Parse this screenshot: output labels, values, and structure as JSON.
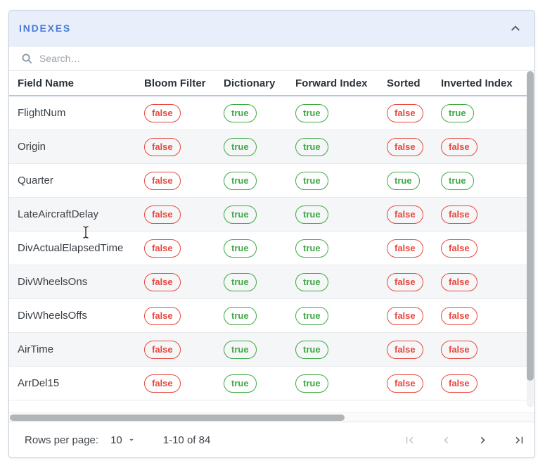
{
  "panel": {
    "title": "INDEXES",
    "collapse_icon": "chevron-up"
  },
  "search": {
    "placeholder": "Search…",
    "value": "",
    "icon": "magnifier"
  },
  "table": {
    "columns": [
      "Field Name",
      "Bloom Filter",
      "Dictionary",
      "Forward Index",
      "Sorted",
      "Inverted Index"
    ],
    "rows": [
      {
        "field": "FlightNum",
        "values": [
          "false",
          "true",
          "true",
          "false",
          "true"
        ]
      },
      {
        "field": "Origin",
        "values": [
          "false",
          "true",
          "true",
          "false",
          "false"
        ]
      },
      {
        "field": "Quarter",
        "values": [
          "false",
          "true",
          "true",
          "true",
          "true"
        ]
      },
      {
        "field": "LateAircraftDelay",
        "values": [
          "false",
          "true",
          "true",
          "false",
          "false"
        ]
      },
      {
        "field": "DivActualElapsedTime",
        "values": [
          "false",
          "true",
          "true",
          "false",
          "false"
        ]
      },
      {
        "field": "DivWheelsOns",
        "values": [
          "false",
          "true",
          "true",
          "false",
          "false"
        ]
      },
      {
        "field": "DivWheelsOffs",
        "values": [
          "false",
          "true",
          "true",
          "false",
          "false"
        ]
      },
      {
        "field": "AirTime",
        "values": [
          "false",
          "true",
          "true",
          "false",
          "false"
        ]
      },
      {
        "field": "ArrDel15",
        "values": [
          "false",
          "true",
          "true",
          "false",
          "false"
        ]
      }
    ]
  },
  "pagination": {
    "rows_per_page_label": "Rows per page:",
    "rows_per_page_value": "10",
    "range_label": "1-10 of 84",
    "icons": [
      "first-page",
      "previous-page",
      "next-page",
      "last-page"
    ],
    "first_page_enabled": false,
    "previous_page_enabled": false,
    "next_page_enabled": true,
    "last_page_enabled": true
  },
  "colors": {
    "panel_header_bg": "#e9effa",
    "panel_title": "#4a7bd5",
    "true_badge": "#3fa945",
    "false_badge": "#e8483e",
    "header_divider": "#b9c7d4",
    "zebra_row_bg": "#f5f6f7",
    "scrollbar_thumb": "#b2b5b8"
  }
}
